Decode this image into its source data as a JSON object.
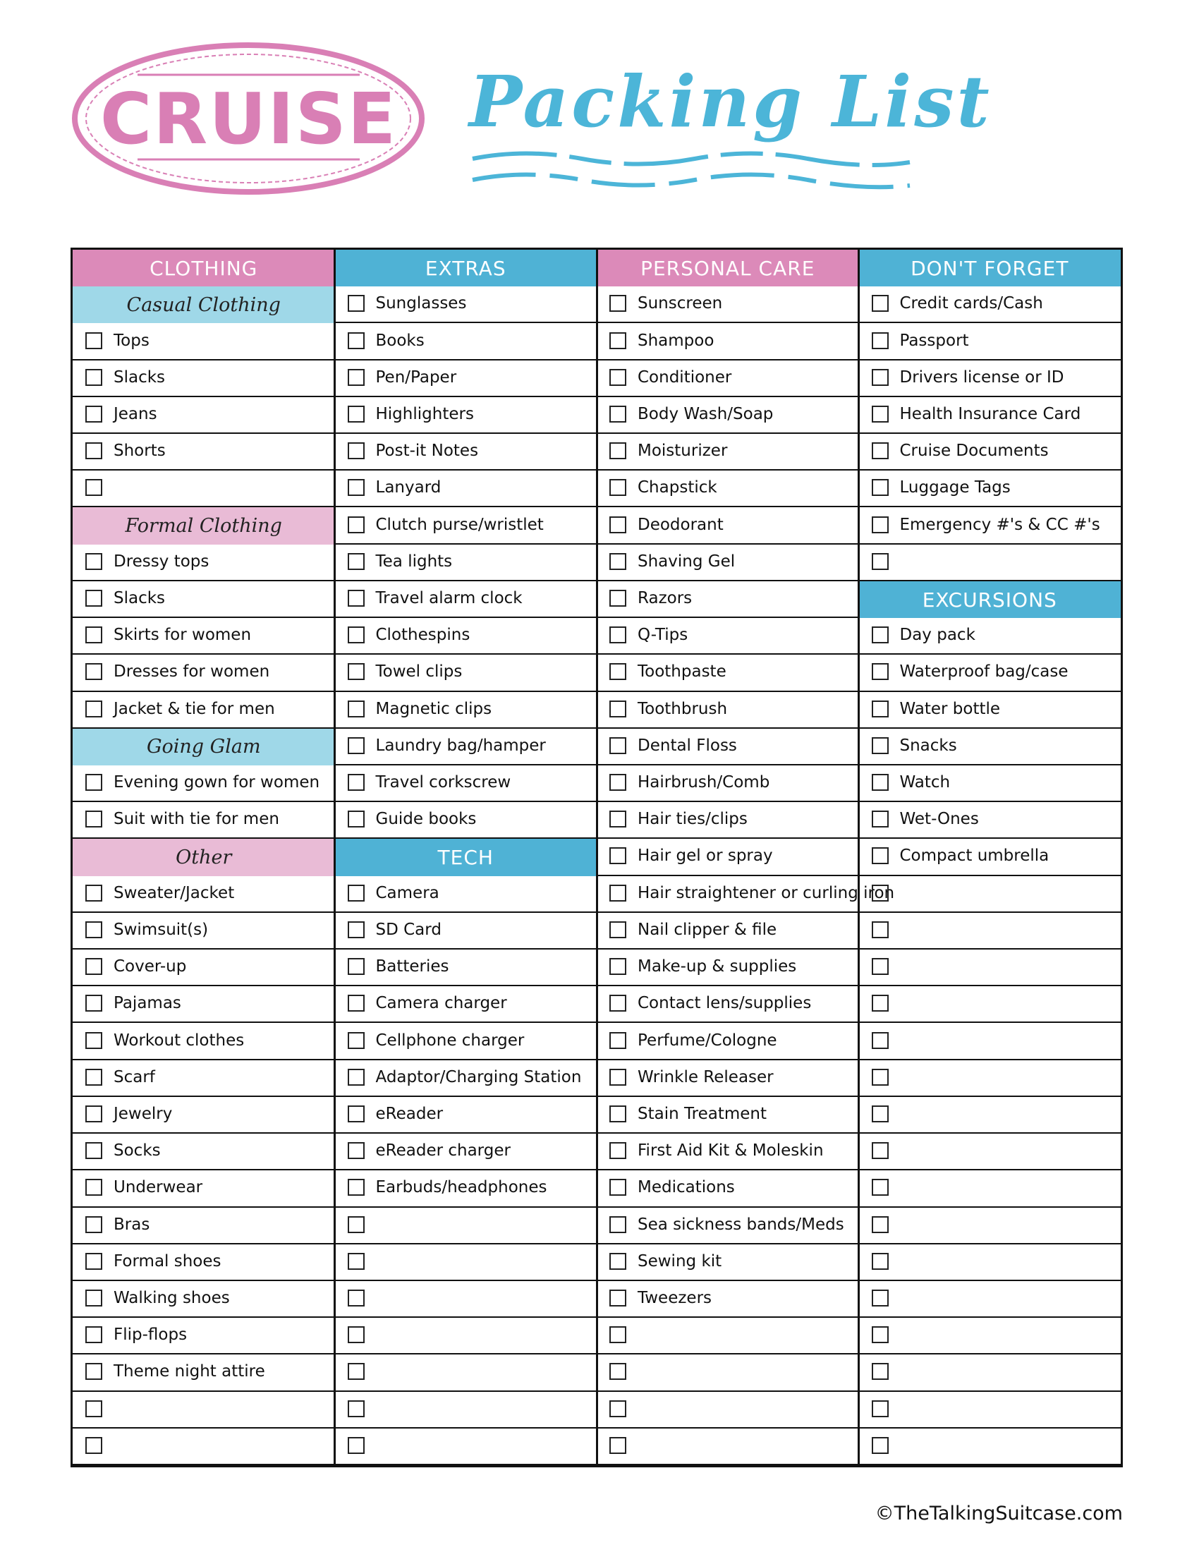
{
  "header": {
    "badge": "CRUISE",
    "title": "Packing List"
  },
  "footer": "©TheTalkingSuitcase.com",
  "columns": [
    {
      "blocks": [
        {
          "title": "CLOTHING",
          "color": "#dc8ab9",
          "groups": [
            {
              "title": "Casual Clothing",
              "color": "#9fd8e8",
              "items": [
                "Tops",
                "Slacks",
                "Jeans",
                "Shorts",
                null
              ]
            },
            {
              "title": "Formal Clothing",
              "color": "#e9bbd6",
              "items": [
                "Dressy tops",
                "Slacks",
                "Skirts for women",
                "Dresses for women",
                "Jacket & tie for men"
              ]
            },
            {
              "title": "Going Glam",
              "color": "#9fd8e8",
              "items": [
                "Evening gown for women",
                "Suit with tie for men"
              ]
            },
            {
              "title": "Other",
              "color": "#e9bbd6",
              "items": [
                "Sweater/Jacket",
                "Swimsuit(s)",
                "Cover-up",
                "Pajamas",
                "Workout clothes",
                "Scarf",
                "Jewelry",
                "Socks",
                "Underwear",
                "Bras",
                "Formal shoes",
                "Walking shoes",
                "Flip-flops",
                "Theme night attire",
                null,
                null
              ]
            }
          ]
        }
      ]
    },
    {
      "blocks": [
        {
          "title": "EXTRAS",
          "color": "#4fb2d5",
          "items": [
            "Sunglasses",
            "Books",
            "Pen/Paper",
            "Highlighters",
            "Post-it Notes",
            "Lanyard",
            "Clutch purse/wristlet",
            "Tea lights",
            "Travel alarm clock",
            "Clothespins",
            "Towel clips",
            "Magnetic clips",
            "Laundry bag/hamper",
            "Travel corkscrew",
            "Guide books"
          ]
        },
        {
          "title": "TECH",
          "color": "#4fb2d5",
          "items": [
            "Camera",
            "SD Card",
            "Batteries",
            "Camera charger",
            "Cellphone charger",
            "Adaptor/Charging Station",
            "eReader",
            "eReader charger",
            "Earbuds/headphones",
            null,
            null,
            null,
            null,
            null,
            null,
            null
          ]
        }
      ]
    },
    {
      "blocks": [
        {
          "title": "PERSONAL CARE",
          "color": "#dc8ab9",
          "items": [
            "Sunscreen",
            "Shampoo",
            "Conditioner",
            "Body Wash/Soap",
            "Moisturizer",
            "Chapstick",
            "Deodorant",
            "Shaving Gel",
            "Razors",
            "Q-Tips",
            "Toothpaste",
            "Toothbrush",
            "Dental Floss",
            "Hairbrush/Comb",
            "Hair ties/clips",
            "Hair gel or spray",
            "Hair straightener or curling iron",
            "Nail clipper & file",
            "Make-up & supplies",
            "Contact lens/supplies",
            "Perfume/Cologne",
            "Wrinkle Releaser",
            "Stain Treatment",
            "First Aid Kit & Moleskin",
            "Medications",
            "Sea sickness bands/Meds",
            "Sewing kit",
            "Tweezers",
            null,
            null,
            null,
            null
          ]
        }
      ]
    },
    {
      "blocks": [
        {
          "title": "DON'T FORGET",
          "color": "#4fb2d5",
          "items": [
            "Credit cards/Cash",
            "Passport",
            "Drivers license or ID",
            "Health Insurance Card",
            "Cruise Documents",
            "Luggage Tags",
            "Emergency #'s & CC #'s",
            null
          ]
        },
        {
          "title": "EXCURSIONS",
          "color": "#4fb2d5",
          "items": [
            "Day pack",
            "Waterproof bag/case",
            "Water bottle",
            "Snacks",
            "Watch",
            "Wet-Ones",
            "Compact umbrella",
            null,
            null,
            null,
            null,
            null,
            null,
            null,
            null,
            null,
            null,
            null,
            null,
            null,
            null,
            null,
            null
          ]
        }
      ]
    }
  ]
}
